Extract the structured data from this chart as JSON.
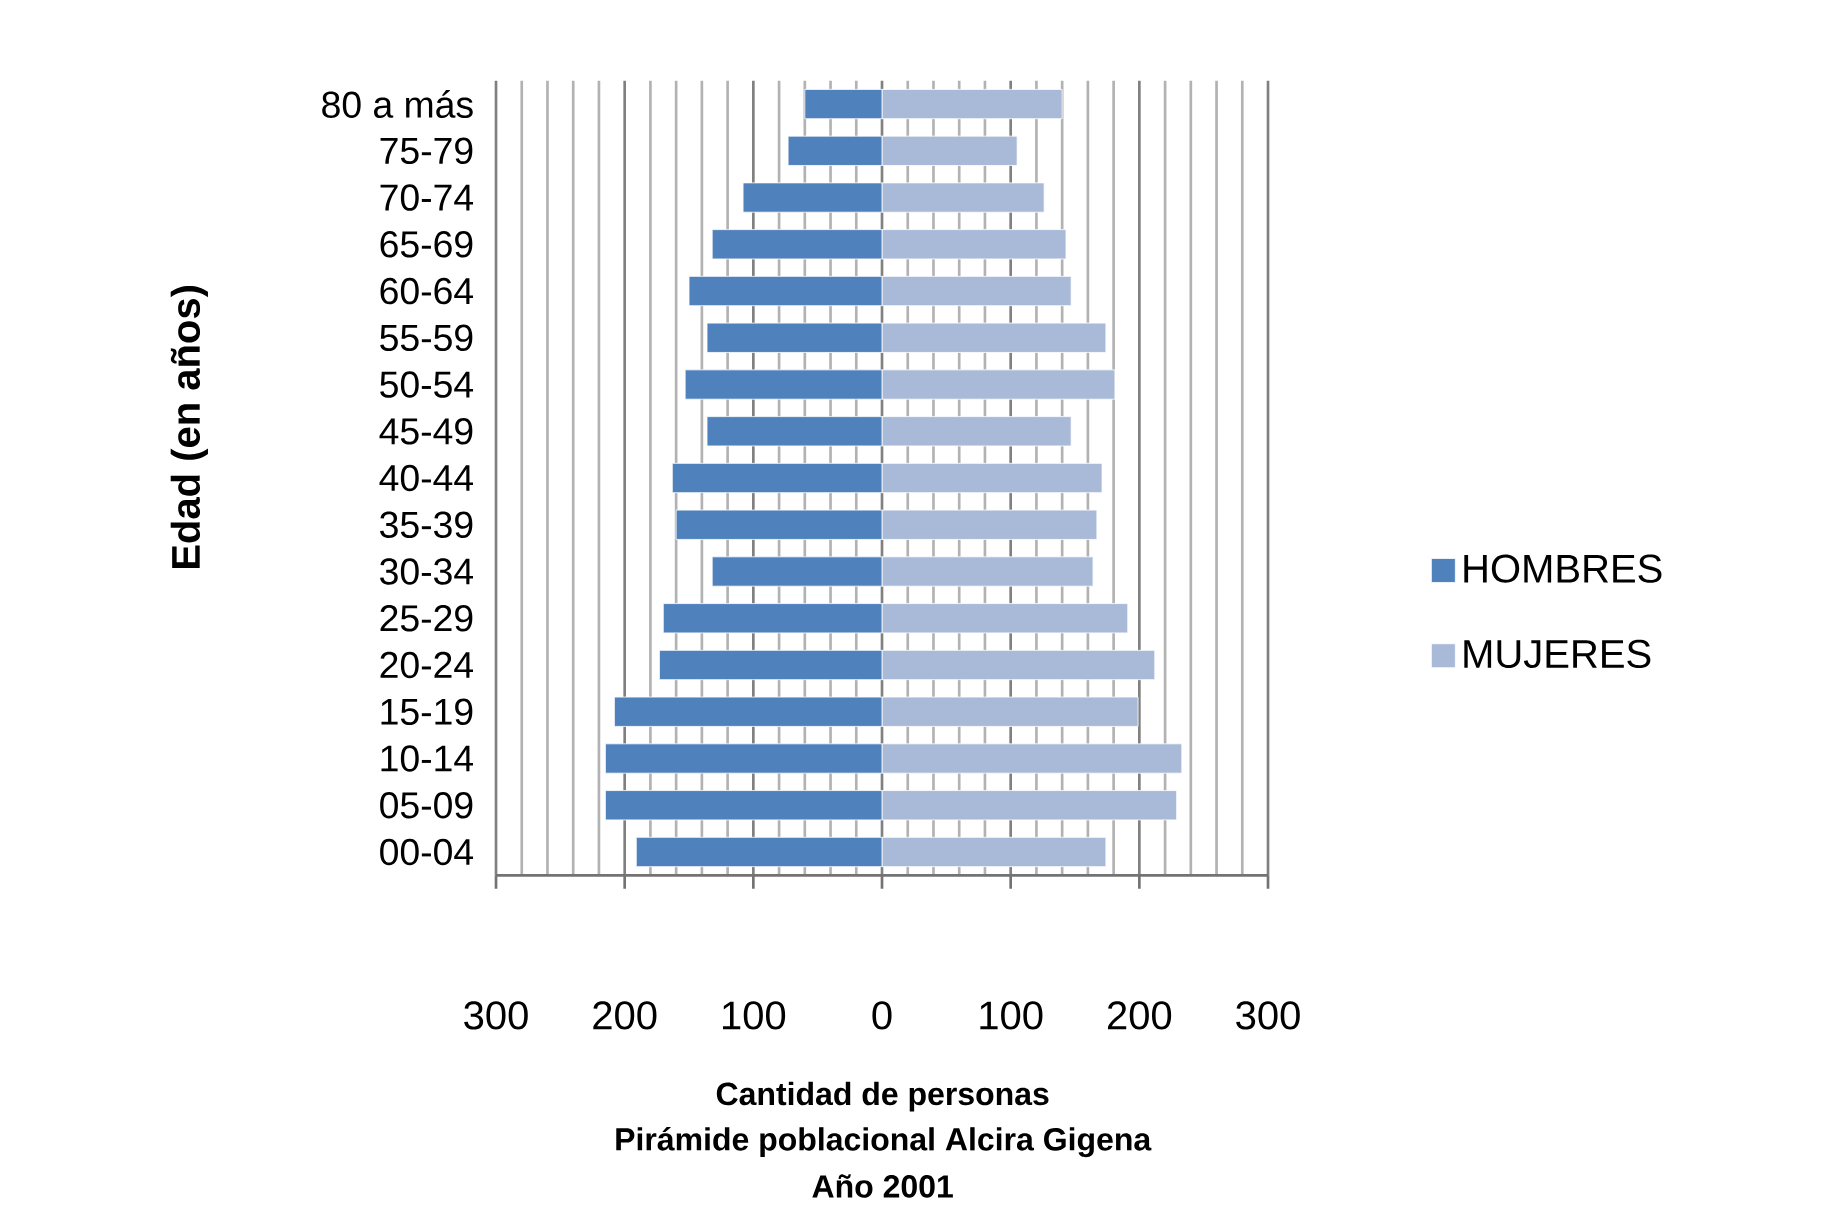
{
  "chart_data": {
    "type": "bar",
    "orientation": "horizontal",
    "title": "Pirámide poblacional Alcira Gigena",
    "subtitle": "Año 2001",
    "xlabel": "Cantidad de personas",
    "ylabel": "Edad (en  años)",
    "categories": [
      "80 a más",
      "75-79",
      "70-74",
      "65-69",
      "60-64",
      "55-59",
      "50-54",
      "45-49",
      "40-44",
      "35-39",
      "30-34",
      "25-29",
      "20-24",
      "15-19",
      "10-14",
      "05-09",
      "00-04"
    ],
    "series": [
      {
        "name": "HOMBRES",
        "color": "#4f81bd",
        "values": [
          -60,
          -73,
          -108,
          -132,
          -150,
          -136,
          -153,
          -136,
          -163,
          -160,
          -132,
          -170,
          -173,
          -208,
          -215,
          -215,
          -191
        ]
      },
      {
        "name": "MUJERES",
        "color": "#a9b9d8",
        "values": [
          140,
          105,
          126,
          143,
          147,
          174,
          181,
          147,
          171,
          167,
          164,
          191,
          212,
          199,
          233,
          229,
          174
        ]
      }
    ],
    "xlim": [
      -300,
      300
    ],
    "xticks": [
      {
        "value": -300,
        "label": "300"
      },
      {
        "value": -200,
        "label": "200"
      },
      {
        "value": -100,
        "label": "100"
      },
      0,
      100,
      200,
      300
    ],
    "grid": "x",
    "legend": "right",
    "stacked": true
  }
}
